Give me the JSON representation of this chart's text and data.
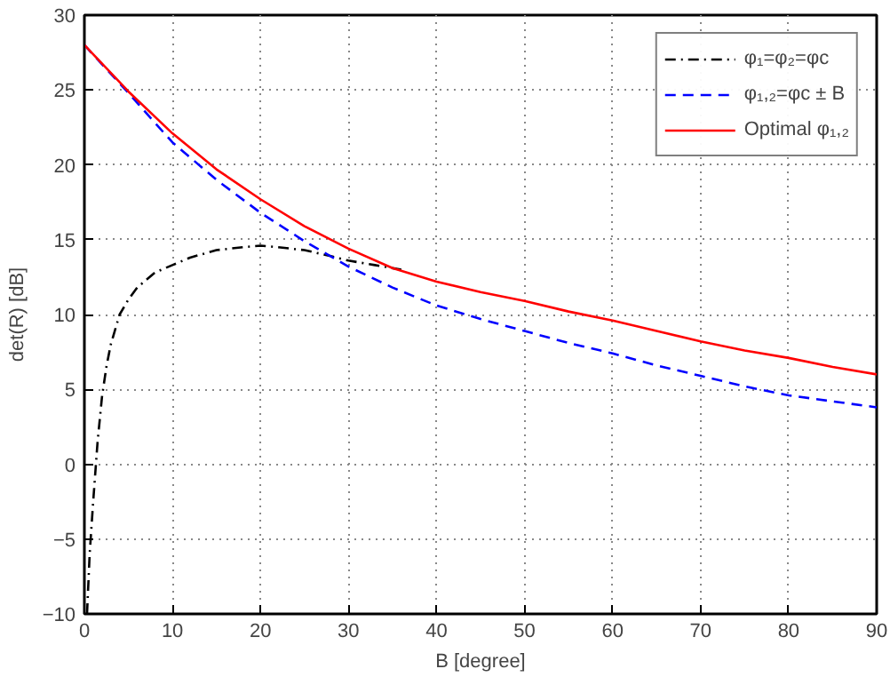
{
  "chart_data": {
    "type": "line",
    "xlabel": "B [degree]",
    "ylabel": "det(R) [dB]",
    "xlim": [
      0,
      90
    ],
    "ylim": [
      -10,
      30
    ],
    "xticks": [
      0,
      10,
      20,
      30,
      40,
      50,
      60,
      70,
      80,
      90
    ],
    "yticks": [
      {
        "value": -10,
        "label": "−10"
      },
      {
        "value": -5,
        "label": "−5"
      },
      0,
      5,
      10,
      15,
      20,
      25,
      30
    ],
    "grid": true,
    "legend": "top right",
    "series": [
      {
        "name": "φ₁=φ₂=φc",
        "color": "#000000",
        "line_style": "dashdot",
        "x": [
          0.3,
          0.6,
          1,
          1.5,
          2,
          2.5,
          3,
          4,
          5,
          6,
          8,
          10,
          12,
          15,
          18,
          20,
          22,
          25,
          28,
          30,
          33,
          36
        ],
        "values": [
          -10,
          -6,
          -2.5,
          1.5,
          4.5,
          6.5,
          8,
          10,
          11,
          11.8,
          12.8,
          13.3,
          13.8,
          14.3,
          14.5,
          14.6,
          14.5,
          14.3,
          13.9,
          13.6,
          13.3,
          13.0
        ]
      },
      {
        "name": "φ₁,₂=φc ± B",
        "color": "#0000ff",
        "line_style": "dashed",
        "x": [
          0,
          5,
          10,
          15,
          20,
          25,
          30,
          35,
          40,
          45,
          50,
          55,
          60,
          65,
          70,
          75,
          80,
          85,
          90
        ],
        "values": [
          28,
          24.8,
          21.5,
          19,
          16.8,
          14.9,
          13.2,
          11.8,
          10.6,
          9.7,
          8.9,
          8.1,
          7.4,
          6.6,
          5.9,
          5.2,
          4.6,
          4.2,
          3.8
        ]
      },
      {
        "name": "Optimal φ₁,₂",
        "color": "#ff0000",
        "line_style": "solid",
        "x": [
          0,
          5,
          10,
          15,
          20,
          25,
          30,
          35,
          40,
          45,
          50,
          55,
          60,
          65,
          70,
          75,
          80,
          85,
          90
        ],
        "values": [
          28,
          24.9,
          22.1,
          19.7,
          17.7,
          15.9,
          14.4,
          13.1,
          12.2,
          11.5,
          10.9,
          10.2,
          9.6,
          8.9,
          8.2,
          7.6,
          7.1,
          6.5,
          6.0
        ]
      }
    ]
  }
}
